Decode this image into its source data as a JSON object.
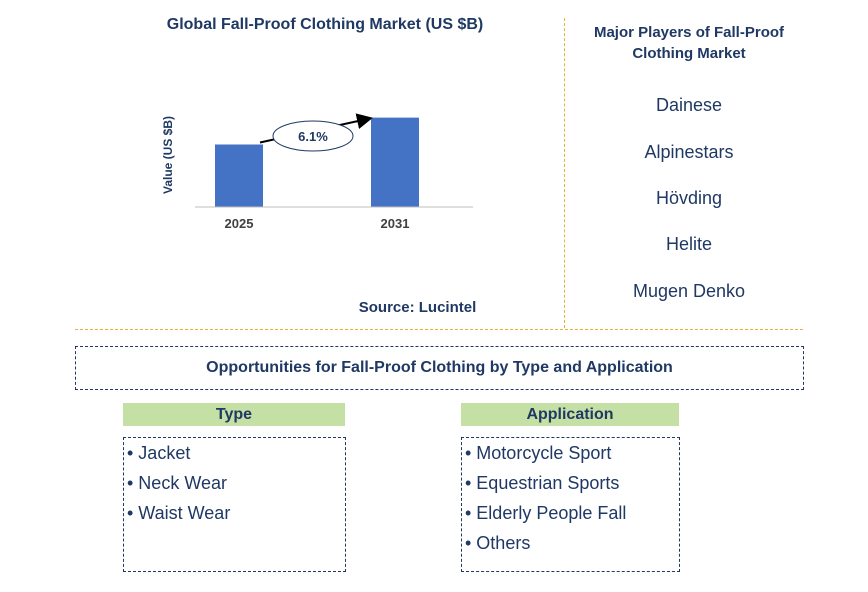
{
  "chart_data": {
    "type": "bar",
    "title": "Global Fall-Proof Clothing Market (US $B)",
    "ylabel": "Value (US $B)",
    "xlabel": "",
    "categories": [
      "2025",
      "2031"
    ],
    "values": [
      1.0,
      1.43
    ],
    "ylim": [
      0,
      1.6
    ],
    "annotation": {
      "text": "6.1%",
      "meaning": "CAGR"
    },
    "bar_color": "#4472c4",
    "grid": false
  },
  "source": "Source: Lucintel",
  "players": {
    "title": "Major Players of Fall-Proof Clothing Market",
    "items": [
      "Dainese",
      "Alpinestars",
      "Hövding",
      "Helite",
      "Mugen Denko"
    ]
  },
  "opportunities": {
    "title": "Opportunities for Fall-Proof Clothing by Type and Application",
    "type": {
      "header": "Type",
      "items": [
        "• Jacket",
        "• Neck Wear",
        "• Waist Wear"
      ]
    },
    "application": {
      "header": "Application",
      "items": [
        "• Motorcycle Sport",
        "• Equestrian Sports",
        "• Elderly People Fall",
        "• Others"
      ]
    }
  },
  "colors": {
    "text": "#1f3864",
    "bar": "#4472c4",
    "header_bg": "#c5e0a5",
    "divider": "#e5b23a"
  }
}
